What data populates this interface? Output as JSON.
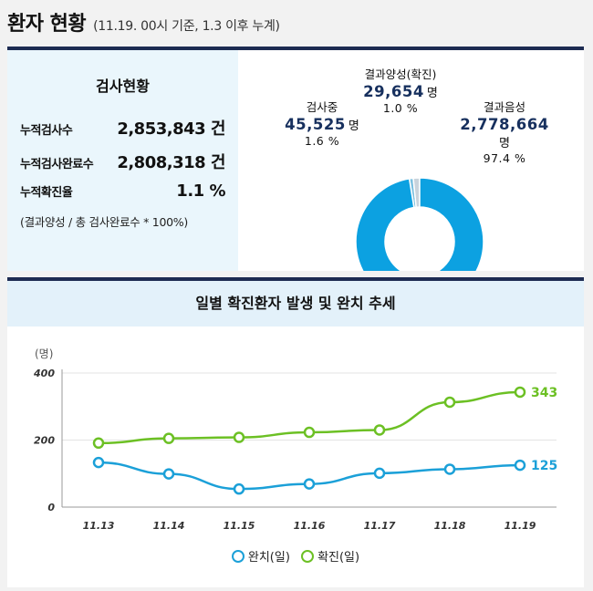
{
  "header": {
    "title": "환자 현황",
    "subtitle": "(11.19. 00시 기준, 1.3 이후 누계)"
  },
  "stats": {
    "title": "검사현황",
    "rows": [
      {
        "label": "누적검사수",
        "value": "2,853,843 건"
      },
      {
        "label": "누적검사완료수",
        "value": "2,808,318 건"
      },
      {
        "label": "누적확진율",
        "value": "1.1 %"
      }
    ],
    "note": "(결과양성 / 총 검사완료수 * 100%)"
  },
  "donut": {
    "positive": {
      "label": "결과양성(확진)",
      "value": "29,654",
      "unit": "명",
      "pct": "1.0 %",
      "fraction": 0.01
    },
    "testing": {
      "label": "검사중",
      "value": "45,525",
      "unit": "명",
      "pct": "1.6 %",
      "fraction": 0.016
    },
    "negative": {
      "label": "결과음성",
      "value": "2,778,664",
      "unit": "명",
      "pct": "97.4 %",
      "fraction": 0.974
    },
    "colors": {
      "positive": "#7bc0e0",
      "testing": "#c8d3dc",
      "negative": "#0ca1e1"
    }
  },
  "chart": {
    "title": "일별 확진환자 발생 및 완치 추세"
  },
  "chart_data": {
    "type": "line",
    "title": "일별 확진환자 발생 및 완치 추세",
    "ylabel": "(명)",
    "ylim": [
      0,
      400
    ],
    "yticks": [
      "0",
      "200",
      "400"
    ],
    "categories": [
      "11.13",
      "11.14",
      "11.15",
      "11.16",
      "11.17",
      "11.18",
      "11.19"
    ],
    "series": [
      {
        "name": "완치(일)",
        "color": "#1ba0d8",
        "values": [
          133,
          99,
          54,
          69,
          101,
          113,
          125
        ],
        "end_label": "125"
      },
      {
        "name": "확진(일)",
        "color": "#6cc024",
        "values": [
          191,
          205,
          208,
          223,
          230,
          313,
          343
        ],
        "end_label": "343"
      }
    ],
    "legend_position": "bottom"
  }
}
